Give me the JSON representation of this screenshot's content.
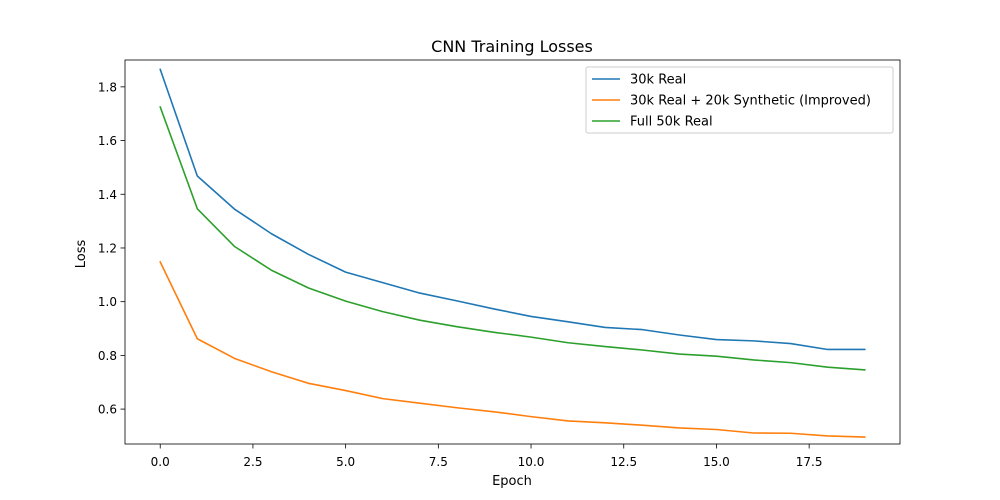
{
  "chart_data": {
    "type": "line",
    "title": "CNN Training Losses",
    "xlabel": "Epoch",
    "ylabel": "Loss",
    "xlim": [
      -0.95,
      19.95
    ],
    "ylim": [
      0.47,
      1.9
    ],
    "x": [
      0,
      1,
      2,
      3,
      4,
      5,
      6,
      7,
      8,
      9,
      10,
      11,
      12,
      13,
      14,
      15,
      16,
      17,
      18,
      19
    ],
    "xticks": [
      0.0,
      2.5,
      5.0,
      7.5,
      10.0,
      12.5,
      15.0,
      17.5
    ],
    "xtick_labels": [
      "0.0",
      "2.5",
      "5.0",
      "7.5",
      "10.0",
      "12.5",
      "15.0",
      "17.5"
    ],
    "yticks": [
      0.6,
      0.8,
      1.0,
      1.2,
      1.4,
      1.6,
      1.8
    ],
    "ytick_labels": [
      "0.6",
      "0.8",
      "1.0",
      "1.2",
      "1.4",
      "1.6",
      "1.8"
    ],
    "grid": false,
    "legend_position": "top-right",
    "series": [
      {
        "name": "30k Real",
        "color": "#1f77b4",
        "values": [
          1.865,
          1.468,
          1.345,
          1.253,
          1.176,
          1.11,
          1.071,
          1.032,
          1.003,
          0.973,
          0.945,
          0.925,
          0.904,
          0.896,
          0.876,
          0.859,
          0.854,
          0.844,
          0.822,
          0.822
        ]
      },
      {
        "name": "30k Real + 20k Synthetic (Improved)",
        "color": "#ff7f0e",
        "values": [
          1.148,
          0.862,
          0.789,
          0.739,
          0.696,
          0.669,
          0.639,
          0.622,
          0.605,
          0.59,
          0.572,
          0.556,
          0.549,
          0.54,
          0.53,
          0.524,
          0.511,
          0.51,
          0.5,
          0.496
        ]
      },
      {
        "name": "Full 50k Real",
        "color": "#2ca02c",
        "values": [
          1.725,
          1.346,
          1.206,
          1.117,
          1.051,
          1.002,
          0.963,
          0.931,
          0.907,
          0.886,
          0.868,
          0.847,
          0.833,
          0.82,
          0.805,
          0.797,
          0.783,
          0.773,
          0.756,
          0.746
        ]
      }
    ]
  }
}
